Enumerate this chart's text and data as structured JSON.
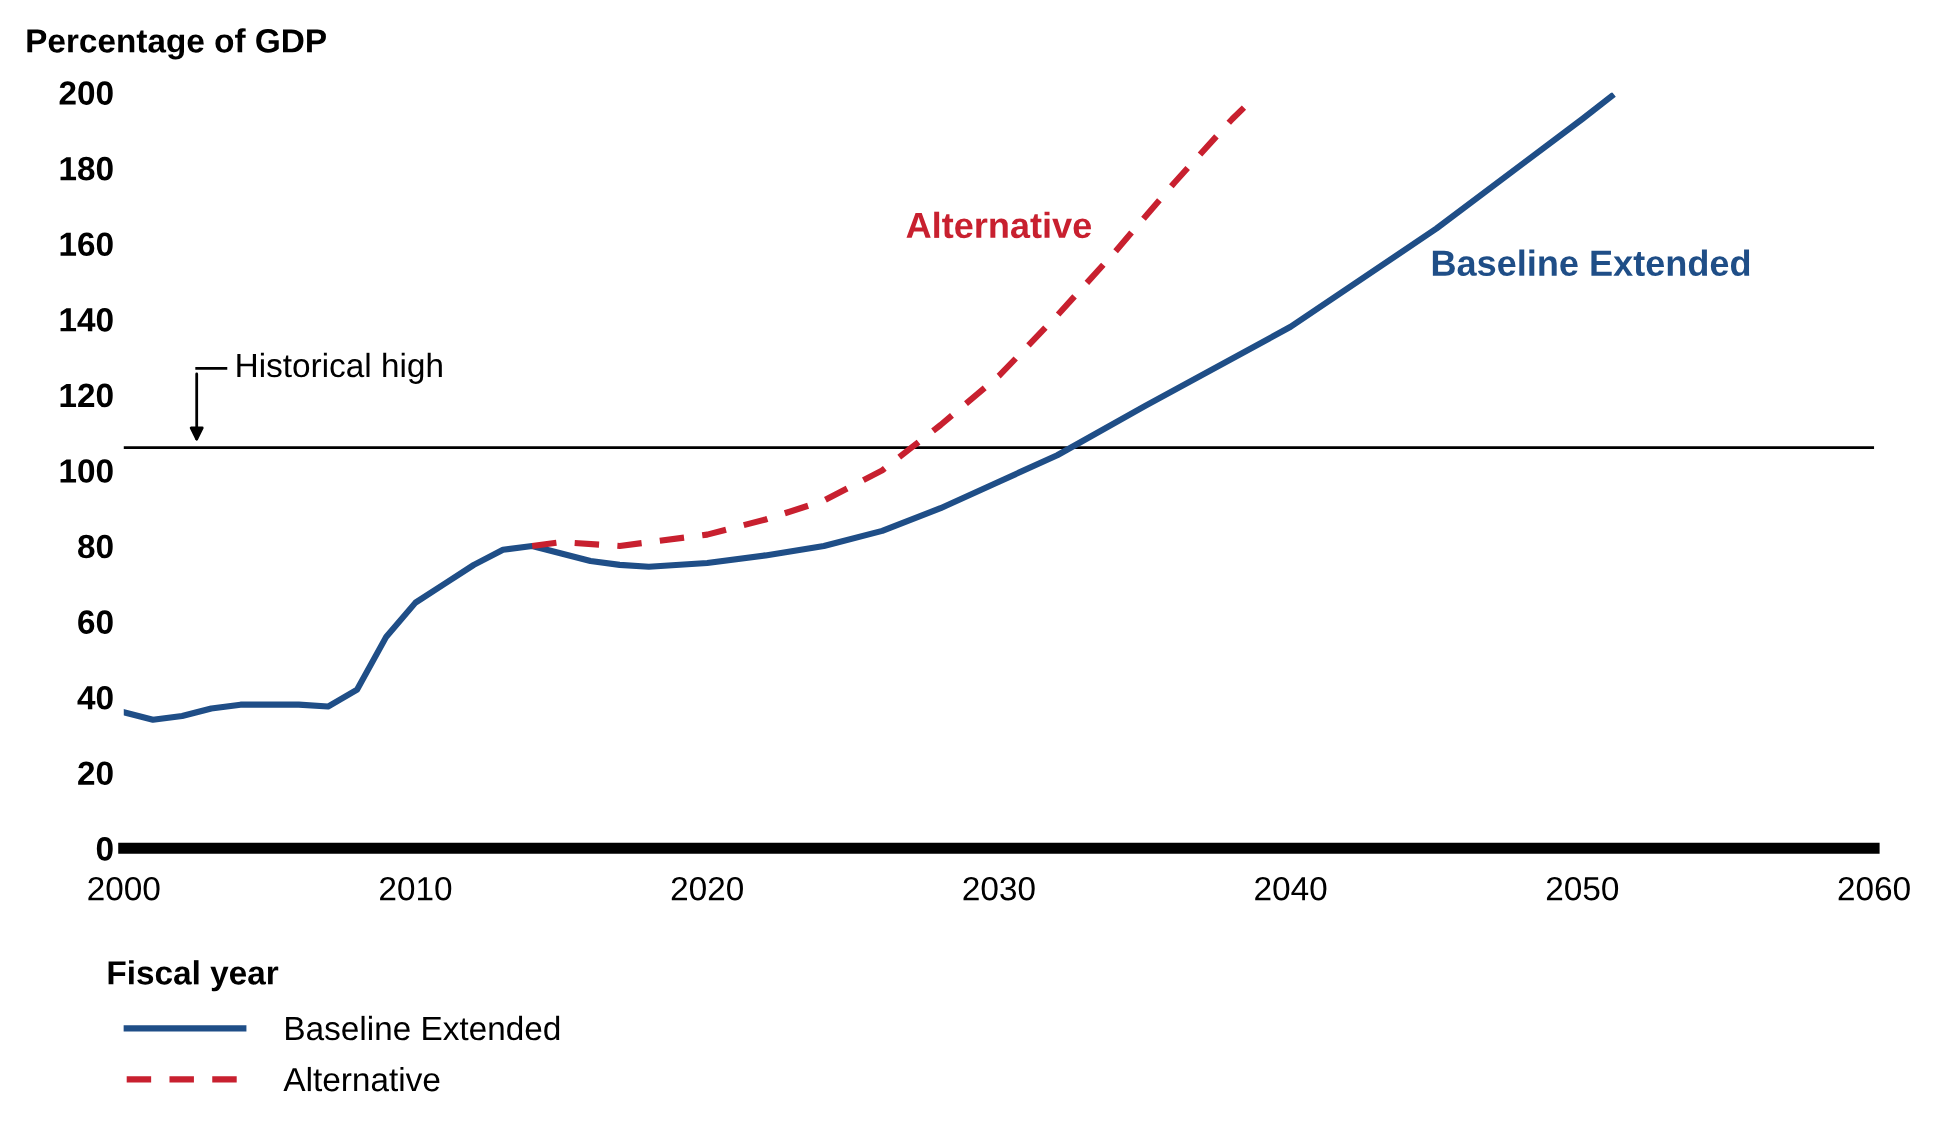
{
  "chart_data": {
    "type": "line",
    "ylabel": "Percentage of GDP",
    "xlabel": "Fiscal year",
    "xlim": [
      2000,
      2060
    ],
    "xticks": [
      2000,
      2010,
      2020,
      2030,
      2040,
      2050,
      2060
    ],
    "ylim": [
      0,
      200
    ],
    "yticks": [
      0,
      20,
      40,
      60,
      80,
      100,
      120,
      140,
      160,
      180,
      200
    ],
    "series": [
      {
        "name": "Baseline Extended",
        "color": "#1f4e87",
        "line_style": "solid",
        "x": [
          2000,
          2001,
          2002,
          2003,
          2004,
          2005,
          2006,
          2007,
          2008,
          2009,
          2010,
          2011,
          2012,
          2013,
          2014,
          2015,
          2016,
          2017,
          2018,
          2020,
          2022,
          2024,
          2026,
          2028,
          2030,
          2032,
          2035,
          2040,
          2045,
          2050,
          2051
        ],
        "values": [
          36,
          34,
          35,
          37,
          38,
          38,
          38,
          37.5,
          42,
          56,
          65,
          70,
          75,
          79,
          80,
          78,
          76,
          75,
          74.5,
          75.5,
          77.5,
          80,
          84,
          90,
          97,
          104,
          117,
          138,
          164,
          193,
          199
        ]
      },
      {
        "name": "Alternative",
        "color": "#c8202f",
        "line_style": "dashed",
        "x": [
          2014,
          2015,
          2017,
          2020,
          2022,
          2024,
          2026,
          2027,
          2028,
          2030,
          2032,
          2034,
          2036,
          2038,
          2038.4
        ],
        "values": [
          80,
          81,
          80,
          83,
          87,
          92,
          100,
          106,
          112,
          125,
          141,
          158,
          176,
          193,
          196
        ]
      }
    ],
    "ref_lines": [
      {
        "axis": "y",
        "value": 106,
        "color": "#000000",
        "line_style": "solid"
      }
    ],
    "annotations": [
      {
        "text": "Historical high",
        "x": 2002.5,
        "y": 106
      }
    ],
    "legend": "bottom",
    "grid": false,
    "marker": "none"
  }
}
